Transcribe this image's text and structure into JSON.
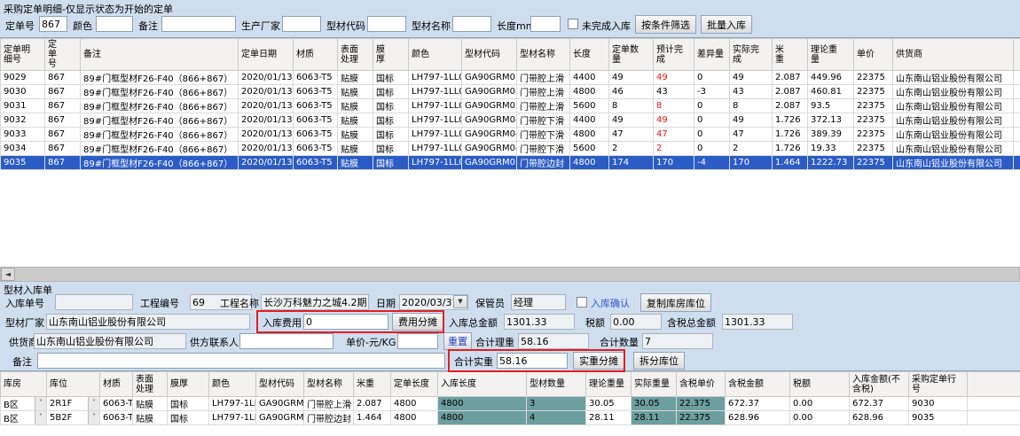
{
  "top": {
    "title": "采购定单明细-仅显示状态为开始的定单",
    "filters": {
      "order_no": {
        "label": "定单号",
        "value": "867"
      },
      "color": {
        "label": "颜色",
        "value": ""
      },
      "remark": {
        "label": "备注",
        "value": ""
      },
      "manufacturer": {
        "label": "生产厂家",
        "value": ""
      },
      "profile_code": {
        "label": "型材代码",
        "value": ""
      },
      "profile_name": {
        "label": "型材名称",
        "value": ""
      },
      "length": {
        "label": "长度mm",
        "value": ""
      },
      "unfinished_checkbox": "未完成入库",
      "filter_btn": "按条件筛选",
      "batch_btn": "批量入库"
    },
    "grid": {
      "columns": [
        "定单明\n细号",
        "定\n单\n号",
        "备注",
        "定单日期",
        "材质",
        "表面\n处理",
        "膜\n厚",
        "颜色",
        "型材代码",
        "型材名称",
        "长度",
        "定单数\n量",
        "预计完\n成",
        "差异量",
        "实际完\n成",
        "米\n重",
        "理论重\n量",
        "单价",
        "供货商",
        ""
      ],
      "rows": [
        [
          "9029",
          "867",
          "89#门框型材F26-F40（866+867）",
          "2020/01/13",
          "6063-T5",
          "贴膜",
          "国标",
          "LH797-1LL0",
          "GA90GRM03",
          "门带腔上滑",
          "4400",
          "49",
          "49",
          "0",
          "49",
          "2.087",
          "449.96",
          "22375",
          "山东南山铝业股份有限公司",
          ""
        ],
        [
          "9030",
          "867",
          "89#门框型材F26-F40（866+867）",
          "2020/01/13",
          "6063-T5",
          "贴膜",
          "国标",
          "LH797-1LL0",
          "GA90GRM03",
          "门带腔上滑",
          "4800",
          "46",
          "43",
          "-3",
          "43",
          "2.087",
          "460.81",
          "22375",
          "山东南山铝业股份有限公司",
          ""
        ],
        [
          "9031",
          "867",
          "89#门框型材F26-F40（866+867）",
          "2020/01/13",
          "6063-T5",
          "贴膜",
          "国标",
          "LH797-1LL0",
          "GA90GRM03",
          "门带腔上滑",
          "5600",
          "8",
          "8",
          "0",
          "8",
          "2.087",
          "93.5",
          "22375",
          "山东南山铝业股份有限公司",
          ""
        ],
        [
          "9032",
          "867",
          "89#门框型材F26-F40（866+867）",
          "2020/01/13",
          "6063-T5",
          "贴膜",
          "国标",
          "LH797-1LL0",
          "GA90GRM04",
          "门带腔下滑",
          "4400",
          "49",
          "49",
          "0",
          "49",
          "1.726",
          "372.13",
          "22375",
          "山东南山铝业股份有限公司",
          ""
        ],
        [
          "9033",
          "867",
          "89#门框型材F26-F40（866+867）",
          "2020/01/13",
          "6063-T5",
          "贴膜",
          "国标",
          "LH797-1LL0",
          "GA90GRM04",
          "门带腔下滑",
          "4800",
          "47",
          "47",
          "0",
          "47",
          "1.726",
          "389.39",
          "22375",
          "山东南山铝业股份有限公司",
          ""
        ],
        [
          "9034",
          "867",
          "89#门框型材F26-F40（866+867）",
          "2020/01/13",
          "6063-T5",
          "贴膜",
          "国标",
          "LH797-1LL0",
          "GA90GRM04",
          "门带腔下滑",
          "5600",
          "2",
          "2",
          "0",
          "2",
          "1.726",
          "19.33",
          "22375",
          "山东南山铝业股份有限公司",
          ""
        ],
        [
          "9035",
          "867",
          "89#门框型材F26-F40（866+867）",
          "2020/01/13",
          "6063-T5",
          "贴膜",
          "国标",
          "LH797-1LL0",
          "GA90GRM05",
          "门带腔边封",
          "4800",
          "174",
          "170",
          "-4",
          "170",
          "1.464",
          "1222.73",
          "22375",
          "山东南山铝业股份有限公司",
          ""
        ]
      ],
      "selected_row": 6,
      "red_cells": [
        [
          0,
          12
        ],
        [
          2,
          12
        ],
        [
          3,
          12
        ],
        [
          4,
          12
        ],
        [
          5,
          12
        ]
      ]
    }
  },
  "bottom": {
    "section_title": "型材入库单",
    "form": {
      "receipt_no": {
        "label": "入库单号",
        "value": ""
      },
      "project_no": {
        "label": "工程编号",
        "value": "69"
      },
      "project_name": {
        "label": "工程名称",
        "value": "长沙万科魅力之城4.2期"
      },
      "date": {
        "label": "日期",
        "value": "2020/03/31"
      },
      "keeper": {
        "label": "保管员",
        "value": "经理"
      },
      "confirm_checkbox": "入库确认",
      "copy_btn": "复制库房库位",
      "factory": {
        "label": "型材厂家",
        "value": "山东南山铝业股份有限公司"
      },
      "fee": {
        "label": "入库费用",
        "value": "0"
      },
      "fee_btn": "费用分摊",
      "total_amount": {
        "label": "入库总金额",
        "value": "1301.33"
      },
      "tax": {
        "label": "税额",
        "value": "0.00"
      },
      "total_with_tax": {
        "label": "含税总金额",
        "value": "1301.33"
      },
      "supplier": {
        "label": "供货商",
        "value": "山东南山铝业股份有限公司"
      },
      "contact": {
        "label": "供方联系人",
        "value": ""
      },
      "unit_price": {
        "label": "单价-元/KG",
        "value": ""
      },
      "reset_btn": "重置",
      "total_theory_weight": {
        "label": "合计理重",
        "value": "58.16"
      },
      "total_qty": {
        "label": "合计数量",
        "value": "7"
      },
      "note": {
        "label": "备注",
        "value": ""
      },
      "total_actual_weight": {
        "label": "合计实重",
        "value": "58.16"
      },
      "weight_btn": "实重分摊",
      "split_btn": "拆分库位"
    },
    "grid": {
      "columns": [
        "库房",
        "库位",
        "材质",
        "表面\n处理",
        "膜厚",
        "颜色",
        "型材代码",
        "型材名称",
        "米重",
        "定单长度",
        "入库长度",
        "型材数量",
        "理论重量",
        "实际重量",
        "含税单价",
        "含税金额",
        "税额",
        "入库金额(不\n含税)",
        "采购定单行\n号",
        ""
      ],
      "rows": [
        [
          "B区",
          "2R1F",
          "6063-T5",
          "贴膜",
          "国标",
          "LH797-1LL0",
          "GA90GRM03",
          "门带腔上滑",
          "2.087",
          "4800",
          "4800",
          "3",
          "30.05",
          "30.05",
          "22.375",
          "672.37",
          "0.00",
          "672.37",
          "9030",
          ""
        ],
        [
          "B区",
          "5B2F",
          "6063-T5",
          "贴膜",
          "国标",
          "LH797-1LL0",
          "GA90GRM05",
          "门带腔边封",
          "1.464",
          "4800",
          "4800",
          "4",
          "28.11",
          "28.11",
          "22.375",
          "628.96",
          "0.00",
          "628.96",
          "9035",
          ""
        ]
      ],
      "teal_cols": [
        10,
        11,
        13,
        14
      ],
      "combo_cols": [
        0,
        1
      ]
    }
  }
}
